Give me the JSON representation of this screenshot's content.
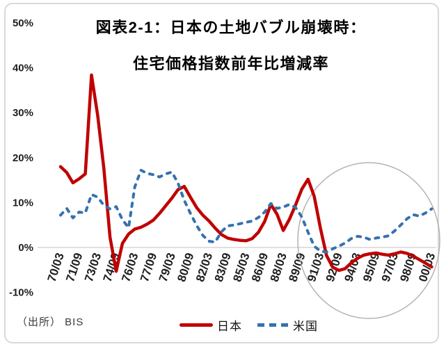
{
  "chart_data": {
    "type": "line",
    "title_line1": "図表2-1：日本の土地バブル崩壊時：",
    "title_line2": "住宅価格指数前年比増減率",
    "frequency": "semiannual",
    "x_tick_labels": [
      "70/03",
      "71/09",
      "73/03",
      "74/09",
      "76/03",
      "77/09",
      "79/03",
      "80/09",
      "82/03",
      "83/09",
      "85/03",
      "86/09",
      "88/03",
      "89/09",
      "91/03",
      "92/09",
      "94/03",
      "95/09",
      "97/03",
      "98/09",
      "00/03"
    ],
    "points_per_x_tick": 3,
    "y_tick_labels": [
      "50%",
      "40%",
      "30%",
      "20%",
      "10%",
      "0%",
      "-10%"
    ],
    "ylim": [
      -10,
      50
    ],
    "grid": "zero-line-only",
    "legend_position": "bottom",
    "series": [
      {
        "name": "日本",
        "color": "#C00000",
        "style": "solid",
        "values": [
          18.0,
          16.7,
          14.4,
          15.3,
          16.4,
          38.4,
          29.4,
          17.7,
          2.3,
          -5.3,
          0.9,
          3.0,
          4.1,
          4.5,
          5.2,
          6.1,
          7.6,
          9.3,
          11.0,
          12.9,
          13.6,
          11.2,
          8.9,
          7.2,
          5.9,
          4.3,
          2.9,
          2.1,
          1.8,
          1.6,
          1.5,
          2.0,
          3.4,
          5.8,
          9.6,
          7.4,
          3.8,
          6.3,
          9.5,
          13.0,
          15.2,
          11.4,
          4.3,
          -1.8,
          -4.4,
          -5.1,
          -4.7,
          -3.4,
          -2.4,
          -1.7,
          -1.4,
          -1.2,
          -1.5,
          -1.7,
          -1.4,
          -1.0,
          -1.3,
          -1.9,
          -2.7,
          -3.5,
          -4.3
        ]
      },
      {
        "name": "米国",
        "color": "#3572B0",
        "style": "dashed",
        "values": [
          7.2,
          8.7,
          6.6,
          7.9,
          7.7,
          11.8,
          11.2,
          9.4,
          8.6,
          9.1,
          6.2,
          4.4,
          13.5,
          17.2,
          16.5,
          16.2,
          15.7,
          16.4,
          16.8,
          14.3,
          10.5,
          7.6,
          4.9,
          2.7,
          1.4,
          1.2,
          3.5,
          4.8,
          5.0,
          5.3,
          5.6,
          5.9,
          6.7,
          7.9,
          9.8,
          8.7,
          9.0,
          9.6,
          8.9,
          6.8,
          3.4,
          0.3,
          -0.8,
          -1.0,
          -0.3,
          0.3,
          1.0,
          2.0,
          2.5,
          2.3,
          1.8,
          2.1,
          2.3,
          2.6,
          3.7,
          5.0,
          6.4,
          7.3,
          7.0,
          7.7,
          8.6
        ]
      }
    ],
    "annotation": {
      "shape": "ellipse",
      "purpose": "highlight of 1991-2000 post-bubble period",
      "cx": 530,
      "cy": 346,
      "rx": 102,
      "ry": 112,
      "color": "#b3b3b3"
    },
    "source_note": "（出所） BIS"
  }
}
